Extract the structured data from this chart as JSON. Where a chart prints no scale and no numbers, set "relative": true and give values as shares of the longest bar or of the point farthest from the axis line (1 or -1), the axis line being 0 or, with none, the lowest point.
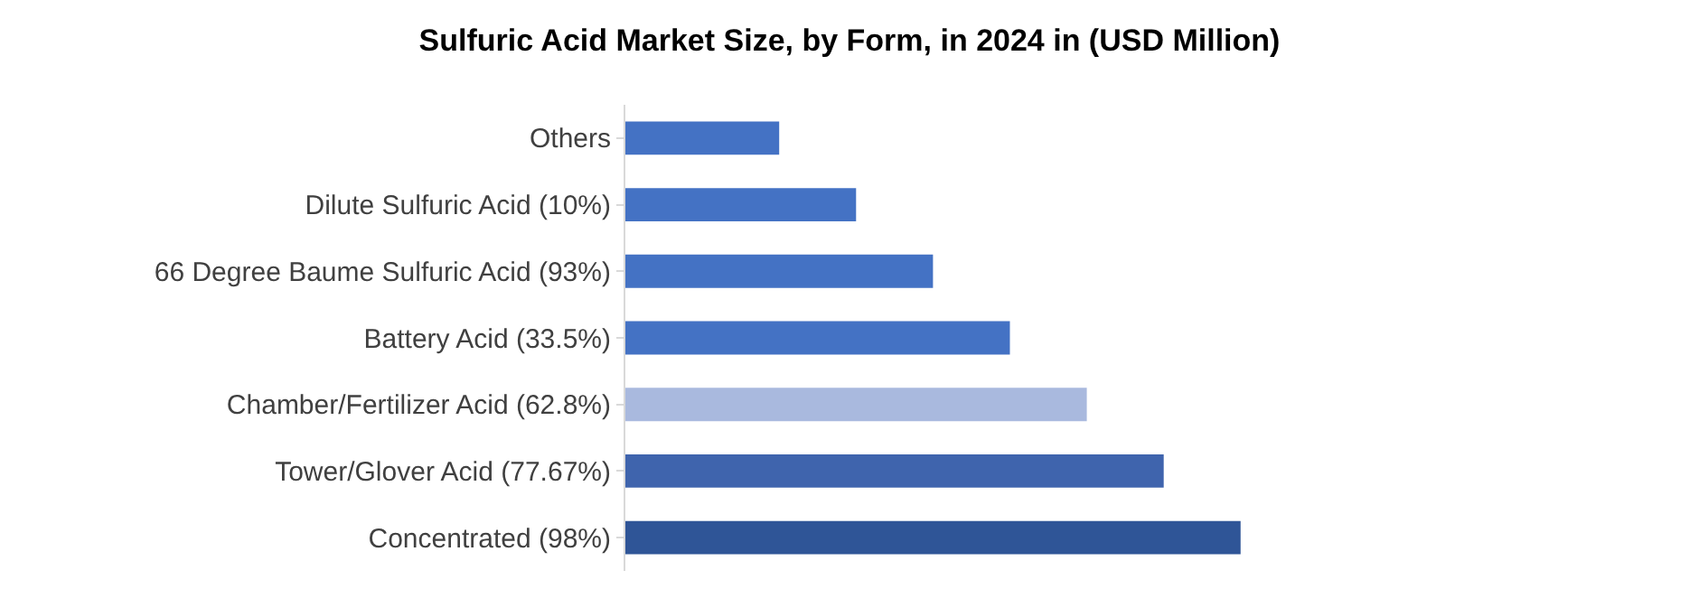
{
  "chart_data": {
    "type": "bar",
    "title": "Sulfuric Acid Market Size, by Form, in 2024 in (USD Million)",
    "orientation": "horizontal",
    "relative": true,
    "categories": [
      "Others",
      "Dilute Sulfuric Acid (10%)",
      "66 Degree Baume Sulfuric Acid (93%)",
      "Battery Acid (33.5%)",
      "Chamber/Fertilizer Acid (62.8%)",
      "Tower/Glover Acid (77.67%)",
      "Concentrated (98%)"
    ],
    "values": [
      0.25,
      0.375,
      0.5,
      0.625,
      0.75,
      0.875,
      1
    ],
    "colors": [
      "#4472c4",
      "#4472c4",
      "#4472c4",
      "#4472c4",
      "#a9b9de",
      "#3f64ad",
      "#2f5597"
    ]
  }
}
